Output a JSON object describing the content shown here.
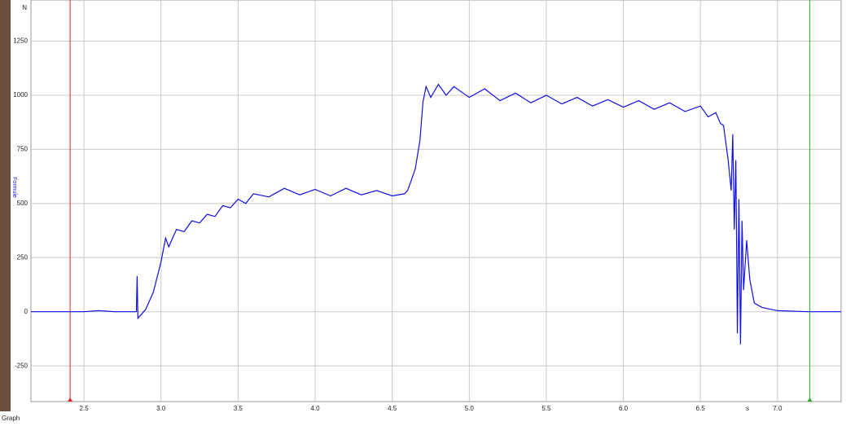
{
  "chart_data": {
    "type": "line",
    "y_label": "Formule",
    "y_unit": "N",
    "x_unit": "s",
    "footer": "Graph",
    "color": "#1010e0",
    "grid": true,
    "xlim": [
      2.156,
      7.413
    ],
    "ylim": [
      -415,
      1440
    ],
    "xticks": [
      2.5,
      {
        "value": 3,
        "label": "3.0"
      },
      3.5,
      {
        "value": 4,
        "label": "4.0"
      },
      4.5,
      {
        "value": 5,
        "label": "5.0"
      },
      5.5,
      {
        "value": 6,
        "label": "6.0"
      },
      6.5,
      {
        "value": 7,
        "label": "7.0"
      }
    ],
    "yticks": [
      -250,
      0,
      250,
      500,
      750,
      1000,
      1250
    ],
    "cursors": {
      "x": [
        2.41,
        7.21
      ],
      "colors": [
        "#e02020",
        "#20b020"
      ]
    },
    "x": [
      2.156,
      2.5,
      2.6,
      2.7,
      2.84,
      2.845,
      2.85,
      2.9,
      2.95,
      3.0,
      3.03,
      3.05,
      3.1,
      3.15,
      3.2,
      3.25,
      3.3,
      3.35,
      3.4,
      3.45,
      3.5,
      3.55,
      3.6,
      3.7,
      3.8,
      3.9,
      4.0,
      4.1,
      4.2,
      4.3,
      4.4,
      4.5,
      4.58,
      4.6,
      4.63,
      4.65,
      4.68,
      4.7,
      4.72,
      4.75,
      4.8,
      4.85,
      4.9,
      5.0,
      5.1,
      5.2,
      5.3,
      5.4,
      5.5,
      5.6,
      5.7,
      5.8,
      5.9,
      6.0,
      6.1,
      6.2,
      6.3,
      6.4,
      6.5,
      6.55,
      6.6,
      6.63,
      6.65,
      6.68,
      6.7,
      6.71,
      6.72,
      6.73,
      6.74,
      6.75,
      6.76,
      6.77,
      6.78,
      6.8,
      6.82,
      6.85,
      6.9,
      7.0,
      7.2,
      7.413
    ],
    "values": [
      0,
      0,
      5,
      0,
      0,
      165,
      -30,
      10,
      90,
      230,
      340,
      300,
      380,
      370,
      420,
      410,
      450,
      440,
      490,
      480,
      520,
      500,
      545,
      530,
      570,
      540,
      565,
      535,
      570,
      540,
      560,
      535,
      545,
      560,
      620,
      660,
      790,
      970,
      1040,
      990,
      1050,
      1000,
      1040,
      990,
      1030,
      975,
      1010,
      965,
      1000,
      960,
      990,
      950,
      980,
      945,
      975,
      935,
      965,
      925,
      950,
      900,
      920,
      870,
      860,
      700,
      560,
      820,
      380,
      700,
      -100,
      520,
      -150,
      420,
      100,
      330,
      150,
      40,
      20,
      5,
      0,
      0
    ]
  }
}
